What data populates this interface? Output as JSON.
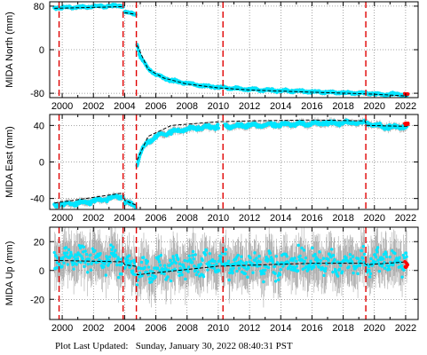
{
  "colors": {
    "gps_points": "#00e5ff",
    "error_bars": "#a9a9a9",
    "model_line": "#000000",
    "event_lines": "#e00000",
    "recent_points": "#ff0000"
  },
  "footer": {
    "label": "Plot Last Updated:",
    "value": "Sunday, January 30, 2022 08:40:31 PST"
  },
  "chart_data": [
    {
      "type": "scatter",
      "title": "",
      "xlabel": "",
      "ylabel": "MIDA North (mm)",
      "xlim": [
        1999.2,
        2022.8
      ],
      "ylim": [
        -88,
        88
      ],
      "x_ticks": [
        2000,
        2002,
        2004,
        2006,
        2008,
        2010,
        2012,
        2014,
        2016,
        2018,
        2020,
        2022
      ],
      "y_ticks": [
        -80,
        0,
        80
      ],
      "event_lines": [
        1999.8,
        2003.9,
        2004.75,
        2010.3,
        2019.45
      ],
      "segments": [
        {
          "x": [
            1999.5,
            2001.0,
            2002.5,
            2003.9
          ],
          "y": [
            77,
            78,
            80,
            80
          ]
        },
        {
          "x": [
            2004.0,
            2004.4,
            2004.7
          ],
          "y": [
            69,
            67,
            66
          ]
        },
        {
          "x": [
            2004.8,
            2005.0,
            2005.5,
            2006.0,
            2007.0,
            2008.0,
            2009.0,
            2010.0,
            2011.0,
            2012.0,
            2014.0,
            2016.0,
            2018.0,
            2019.4
          ],
          "y": [
            10,
            -14,
            -34,
            -46,
            -57,
            -62,
            -66,
            -69,
            -71,
            -73,
            -75,
            -77,
            -79,
            -80
          ]
        },
        {
          "x": [
            2019.5,
            2020.5,
            2021.5,
            2022.1
          ],
          "y": [
            -80,
            -82,
            -82,
            -83
          ]
        }
      ],
      "series": [
        {
          "name": "",
          "x": [
            1999.5,
            2003.9,
            2004.0,
            2004.7,
            2004.8,
            2005.5,
            2006.5,
            2008.0,
            2010.0,
            2012.0,
            2016.0,
            2019.4,
            2019.5,
            2022.1
          ],
          "y": [
            76,
            79,
            68,
            65,
            8,
            -36,
            -52,
            -63,
            -70,
            -74,
            -78,
            -81,
            -81,
            -85
          ]
        }
      ],
      "recent_point": {
        "x": 2022.05,
        "y": -81
      }
    },
    {
      "type": "scatter",
      "title": "",
      "xlabel": "",
      "ylabel": "MIDA East (mm)",
      "xlim": [
        1999.2,
        2022.8
      ],
      "ylim": [
        -52,
        52
      ],
      "x_ticks": [
        2000,
        2002,
        2004,
        2006,
        2008,
        2010,
        2012,
        2014,
        2016,
        2018,
        2020,
        2022
      ],
      "y_ticks": [
        -40,
        0,
        40
      ],
      "event_lines": [
        1999.8,
        2003.9,
        2004.75,
        2010.3,
        2019.45
      ],
      "segments": [
        {
          "x": [
            1999.5,
            2001.0,
            2002.5,
            2003.9
          ],
          "y": [
            -47,
            -45,
            -42,
            -37
          ]
        },
        {
          "x": [
            2004.0,
            2004.4,
            2004.7
          ],
          "y": [
            -44,
            -46,
            -48
          ]
        },
        {
          "x": [
            2004.8,
            2005.0,
            2005.5,
            2006.0,
            2007.0,
            2008.0,
            2009.0,
            2010.0
          ],
          "y": [
            -2,
            10,
            22,
            28,
            33,
            36,
            38,
            39
          ]
        },
        {
          "x": [
            2010.4,
            2012.0,
            2014.0,
            2016.0,
            2018.0,
            2019.4
          ],
          "y": [
            39,
            40,
            41,
            42,
            43,
            43
          ]
        },
        {
          "x": [
            2019.5,
            2020.5,
            2021.5,
            2022.1
          ],
          "y": [
            42,
            39,
            38,
            39
          ]
        }
      ],
      "series": [
        {
          "name": "",
          "x": [
            1999.5,
            2003.9,
            2004.0,
            2004.7,
            2004.8,
            2005.5,
            2007.0,
            2010.0,
            2012.0,
            2016.0,
            2019.4,
            2019.5,
            2022.1
          ],
          "y": [
            -45,
            -34,
            -42,
            -47,
            2,
            28,
            40,
            44,
            45,
            46,
            45,
            40,
            39
          ]
        }
      ],
      "recent_point": {
        "x": 2022.05,
        "y": 42
      }
    },
    {
      "type": "scatter",
      "title": "",
      "xlabel": "",
      "ylabel": "MIDA Up (mm)",
      "xlim": [
        1999.2,
        2022.8
      ],
      "ylim": [
        -34,
        30
      ],
      "x_ticks": [
        2000,
        2002,
        2004,
        2006,
        2008,
        2010,
        2012,
        2014,
        2016,
        2018,
        2020,
        2022
      ],
      "y_ticks": [
        -20,
        0,
        20
      ],
      "event_lines": [
        1999.8,
        2003.9,
        2004.75,
        2010.3,
        2019.45
      ],
      "segments": [
        {
          "x": [
            1999.5,
            2001.0,
            2002.5,
            2003.9
          ],
          "y": [
            8,
            9,
            8,
            7
          ]
        },
        {
          "x": [
            2004.0,
            2004.7
          ],
          "y": [
            5,
            4
          ]
        },
        {
          "x": [
            2004.8,
            2006.0,
            2008.0,
            2010.0,
            2012.0,
            2014.0,
            2016.0,
            2018.0,
            2019.4
          ],
          "y": [
            -2,
            1,
            3,
            4,
            4,
            5,
            5,
            5,
            5
          ]
        },
        {
          "x": [
            2019.5,
            2020.5,
            2021.5,
            2022.1
          ],
          "y": [
            5,
            5,
            6,
            6
          ]
        }
      ],
      "series": [
        {
          "name": "",
          "x": [
            1999.5,
            2003.9,
            2004.0,
            2004.7,
            2004.8,
            2010.0,
            2016.0,
            2019.4,
            2019.5,
            2022.1
          ],
          "y": [
            7,
            6,
            4,
            3,
            -3,
            3,
            5,
            5,
            4,
            6
          ]
        }
      ],
      "recent_point": {
        "x": 2022.05,
        "y": 5
      }
    }
  ]
}
